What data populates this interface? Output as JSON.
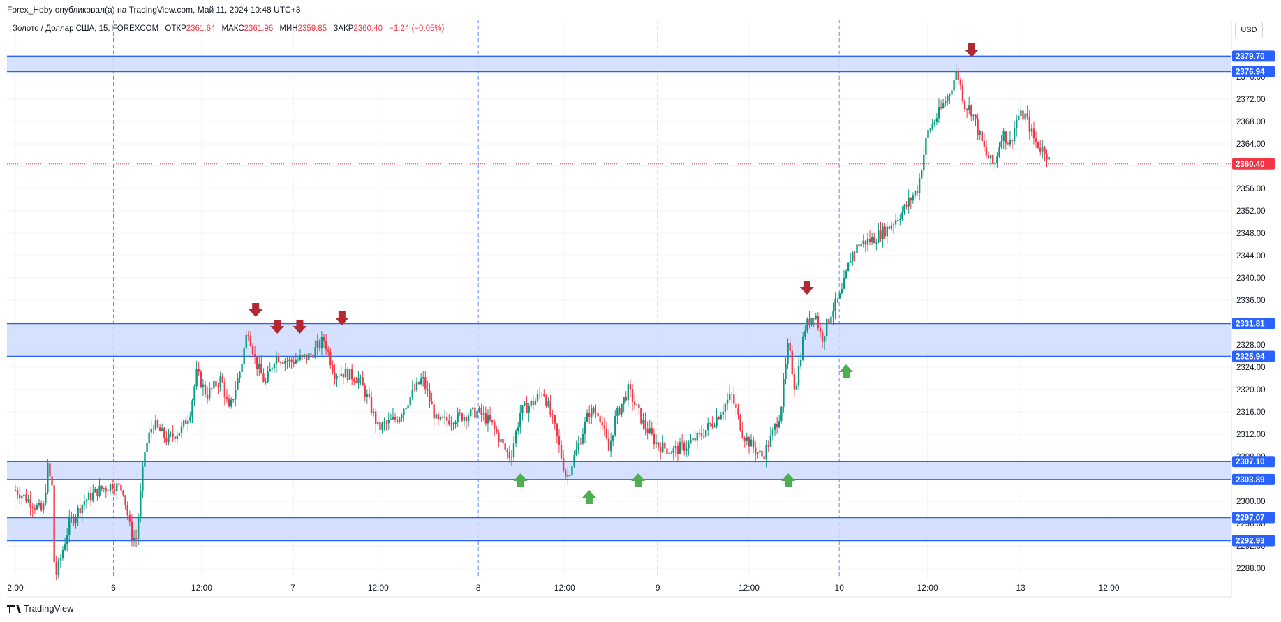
{
  "header": {
    "publisher_line": "Forex_Hoby опубликовал(а) на TradingView.com, Май 11, 2024 10:48 UTC+3"
  },
  "legend": {
    "symbol": "Золото / Доллар США, 15, FOREXCOM",
    "open_label": "ОТКР",
    "open_value": "2361.64",
    "high_label": "МАКС",
    "high_value": "2361.96",
    "low_label": "МИН",
    "low_value": "2359.85",
    "close_label": "ЗАКР",
    "close_value": "2360.40",
    "change": "−1.24 (−0.05%)"
  },
  "currency_button": "USD",
  "brand": "TradingView",
  "colors": {
    "up": "#089981",
    "down": "#f23645",
    "zone_fill": "#cfdcff",
    "zone_line": "#2962ff",
    "arrow_down": "#b22833",
    "arrow_up": "#4caf50",
    "grid": "#f0f3fa",
    "separator": "#2962ff"
  },
  "chart_data": {
    "type": "candlestick",
    "timeframe": "15",
    "ylim": [
      2286,
      2382
    ],
    "y_ticks": [
      "2288.00",
      "2292.00",
      "2296.00",
      "2300.00",
      "2304.00",
      "2308.00",
      "2312.00",
      "2316.00",
      "2320.00",
      "2324.00",
      "2328.00",
      "2332.00",
      "2336.00",
      "2340.00",
      "2344.00",
      "2348.00",
      "2352.00",
      "2356.00",
      "2360.00",
      "2364.00",
      "2368.00",
      "2372.00",
      "2376.00"
    ],
    "x_ticks": [
      {
        "label": "2:00",
        "t": 0.0
      },
      {
        "label": "6",
        "t": 1.0
      },
      {
        "label": "12:00",
        "t": 1.9
      },
      {
        "label": "7",
        "t": 2.83
      },
      {
        "label": "12:00",
        "t": 3.7
      },
      {
        "label": "8",
        "t": 4.72
      },
      {
        "label": "12:00",
        "t": 5.6
      },
      {
        "label": "9",
        "t": 6.55
      },
      {
        "label": "12:00",
        "t": 7.48
      },
      {
        "label": "10",
        "t": 8.4
      },
      {
        "label": "12:00",
        "t": 9.3
      },
      {
        "label": "13",
        "t": 10.25
      },
      {
        "label": "12:00",
        "t": 11.15
      }
    ],
    "day_separators": [
      1.0,
      2.83,
      4.72,
      6.55,
      8.4
    ],
    "last_price": "2360.40",
    "price_path": [
      [
        0.0,
        2302
      ],
      [
        0.15,
        2300
      ],
      [
        0.28,
        2298
      ],
      [
        0.33,
        2306
      ],
      [
        0.38,
        2302
      ],
      [
        0.4,
        2286
      ],
      [
        0.45,
        2289
      ],
      [
        0.55,
        2296
      ],
      [
        0.7,
        2300
      ],
      [
        0.85,
        2302
      ],
      [
        1.0,
        2303
      ],
      [
        1.1,
        2302
      ],
      [
        1.18,
        2294
      ],
      [
        1.23,
        2293
      ],
      [
        1.32,
        2309
      ],
      [
        1.4,
        2314
      ],
      [
        1.55,
        2311
      ],
      [
        1.7,
        2313
      ],
      [
        1.78,
        2316
      ],
      [
        1.85,
        2323
      ],
      [
        1.95,
        2319
      ],
      [
        2.1,
        2322
      ],
      [
        2.18,
        2316
      ],
      [
        2.3,
        2324
      ],
      [
        2.37,
        2331
      ],
      [
        2.45,
        2325
      ],
      [
        2.55,
        2321
      ],
      [
        2.65,
        2326
      ],
      [
        2.8,
        2325
      ],
      [
        3.0,
        2326
      ],
      [
        3.15,
        2329
      ],
      [
        3.25,
        2323
      ],
      [
        3.35,
        2323
      ],
      [
        3.5,
        2322
      ],
      [
        3.6,
        2318
      ],
      [
        3.7,
        2313
      ],
      [
        3.9,
        2315
      ],
      [
        4.0,
        2318
      ],
      [
        4.15,
        2322
      ],
      [
        4.3,
        2314
      ],
      [
        4.5,
        2315
      ],
      [
        4.72,
        2316
      ],
      [
        4.85,
        2314
      ],
      [
        5.0,
        2309
      ],
      [
        5.05,
        2308
      ],
      [
        5.15,
        2316
      ],
      [
        5.3,
        2318
      ],
      [
        5.38,
        2320
      ],
      [
        5.5,
        2313
      ],
      [
        5.62,
        2304
      ],
      [
        5.72,
        2309
      ],
      [
        5.85,
        2316
      ],
      [
        5.95,
        2316
      ],
      [
        6.05,
        2309
      ],
      [
        6.12,
        2315
      ],
      [
        6.25,
        2320
      ],
      [
        6.4,
        2314
      ],
      [
        6.55,
        2310
      ],
      [
        6.7,
        2309
      ],
      [
        6.85,
        2310
      ],
      [
        7.0,
        2312
      ],
      [
        7.15,
        2315
      ],
      [
        7.3,
        2319
      ],
      [
        7.42,
        2312
      ],
      [
        7.55,
        2309
      ],
      [
        7.62,
        2308
      ],
      [
        7.72,
        2312
      ],
      [
        7.8,
        2316
      ],
      [
        7.88,
        2328
      ],
      [
        7.95,
        2320
      ],
      [
        8.05,
        2331
      ],
      [
        8.15,
        2334
      ],
      [
        8.22,
        2329
      ],
      [
        8.32,
        2334
      ],
      [
        8.42,
        2337
      ],
      [
        8.52,
        2344
      ],
      [
        8.6,
        2346
      ],
      [
        8.75,
        2347
      ],
      [
        8.9,
        2349
      ],
      [
        9.05,
        2352
      ],
      [
        9.2,
        2356
      ],
      [
        9.3,
        2366
      ],
      [
        9.4,
        2369
      ],
      [
        9.52,
        2373
      ],
      [
        9.6,
        2377
      ],
      [
        9.68,
        2371
      ],
      [
        9.75,
        2370
      ],
      [
        9.82,
        2366
      ],
      [
        9.9,
        2362
      ],
      [
        9.98,
        2360
      ],
      [
        10.06,
        2366
      ],
      [
        10.14,
        2364
      ],
      [
        10.22,
        2369
      ],
      [
        10.3,
        2369
      ],
      [
        10.38,
        2365
      ],
      [
        10.46,
        2363
      ],
      [
        10.5,
        2363
      ],
      [
        10.55,
        2360.4
      ]
    ],
    "zones": [
      {
        "top": 2379.7,
        "bottom": 2376.94,
        "top_label": "2379.70",
        "bottom_label": "2376.94"
      },
      {
        "top": 2331.81,
        "bottom": 2325.94,
        "top_label": "2331.81",
        "bottom_label": "2325.94"
      },
      {
        "top": 2307.1,
        "bottom": 2303.89,
        "top_label": "2307.10",
        "bottom_label": "2303.89"
      },
      {
        "top": 2297.07,
        "bottom": 2292.93,
        "top_label": "2297.07",
        "bottom_label": "2292.93"
      }
    ],
    "markers": [
      {
        "type": "down",
        "t": 2.45,
        "price": 2333
      },
      {
        "type": "down",
        "t": 2.67,
        "price": 2330
      },
      {
        "type": "down",
        "t": 2.9,
        "price": 2330
      },
      {
        "type": "down",
        "t": 3.33,
        "price": 2331.5
      },
      {
        "type": "down",
        "t": 8.07,
        "price": 2337
      },
      {
        "type": "down",
        "t": 9.75,
        "price": 2379.5
      },
      {
        "type": "up",
        "t": 5.15,
        "price": 2305
      },
      {
        "type": "up",
        "t": 5.85,
        "price": 2302
      },
      {
        "type": "up",
        "t": 6.35,
        "price": 2305
      },
      {
        "type": "up",
        "t": 7.88,
        "price": 2305
      },
      {
        "type": "up",
        "t": 8.47,
        "price": 2324.5
      }
    ]
  }
}
